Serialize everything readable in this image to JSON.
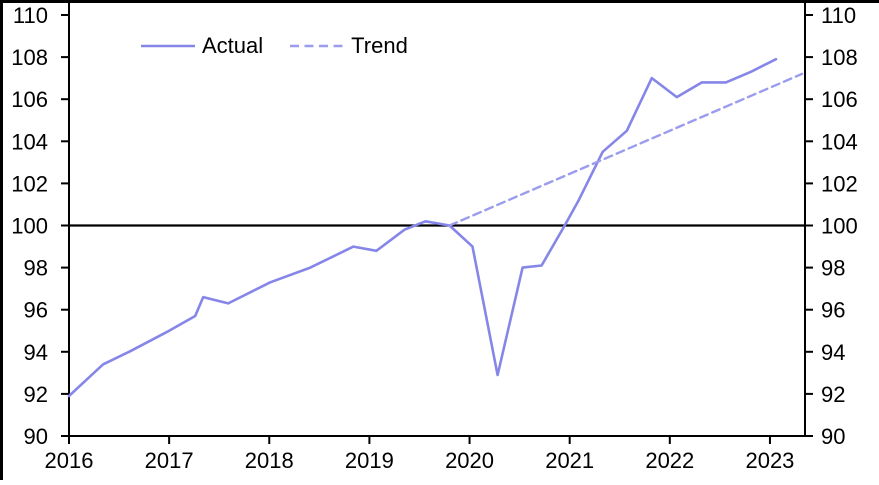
{
  "chart_data": {
    "type": "line",
    "title": "",
    "xlabel": "",
    "ylabel": "",
    "xlim": [
      2016.0,
      2023.35
    ],
    "ylim": [
      90,
      110
    ],
    "xticks": [
      2016,
      2017,
      2018,
      2019,
      2020,
      2021,
      2022,
      2023
    ],
    "yticks": [
      90,
      92,
      94,
      96,
      98,
      100,
      102,
      104,
      106,
      108,
      110
    ],
    "y_axis_sides": "both",
    "grid": false,
    "legend_position": "top-left-inside",
    "reference_line": {
      "value": 100,
      "color": "#000000"
    },
    "series": [
      {
        "name": "Actual",
        "style": "solid",
        "color": "#8686E8",
        "x": [
          2016.0,
          2016.34,
          2016.6,
          2017.0,
          2017.26,
          2017.34,
          2017.59,
          2017.84,
          2018.01,
          2018.41,
          2018.84,
          2019.07,
          2019.35,
          2019.56,
          2019.8,
          2020.03,
          2020.28,
          2020.53,
          2020.72,
          2020.95,
          2021.09,
          2021.33,
          2021.57,
          2021.82,
          2022.07,
          2022.32,
          2022.56,
          2022.81,
          2023.06
        ],
        "values": [
          91.9,
          93.4,
          94.0,
          95.0,
          95.7,
          96.6,
          96.3,
          96.9,
          97.3,
          98.0,
          99.0,
          98.8,
          99.8,
          100.2,
          100.0,
          99.0,
          92.9,
          98.0,
          98.1,
          100.0,
          101.2,
          103.5,
          104.5,
          107.0,
          106.1,
          106.8,
          106.8,
          107.3,
          107.9
        ]
      },
      {
        "name": "Trend",
        "style": "dashed",
        "color": "#9B9CEE",
        "x": [
          2019.8,
          2023.32
        ],
        "values": [
          100.0,
          107.2
        ]
      }
    ]
  }
}
